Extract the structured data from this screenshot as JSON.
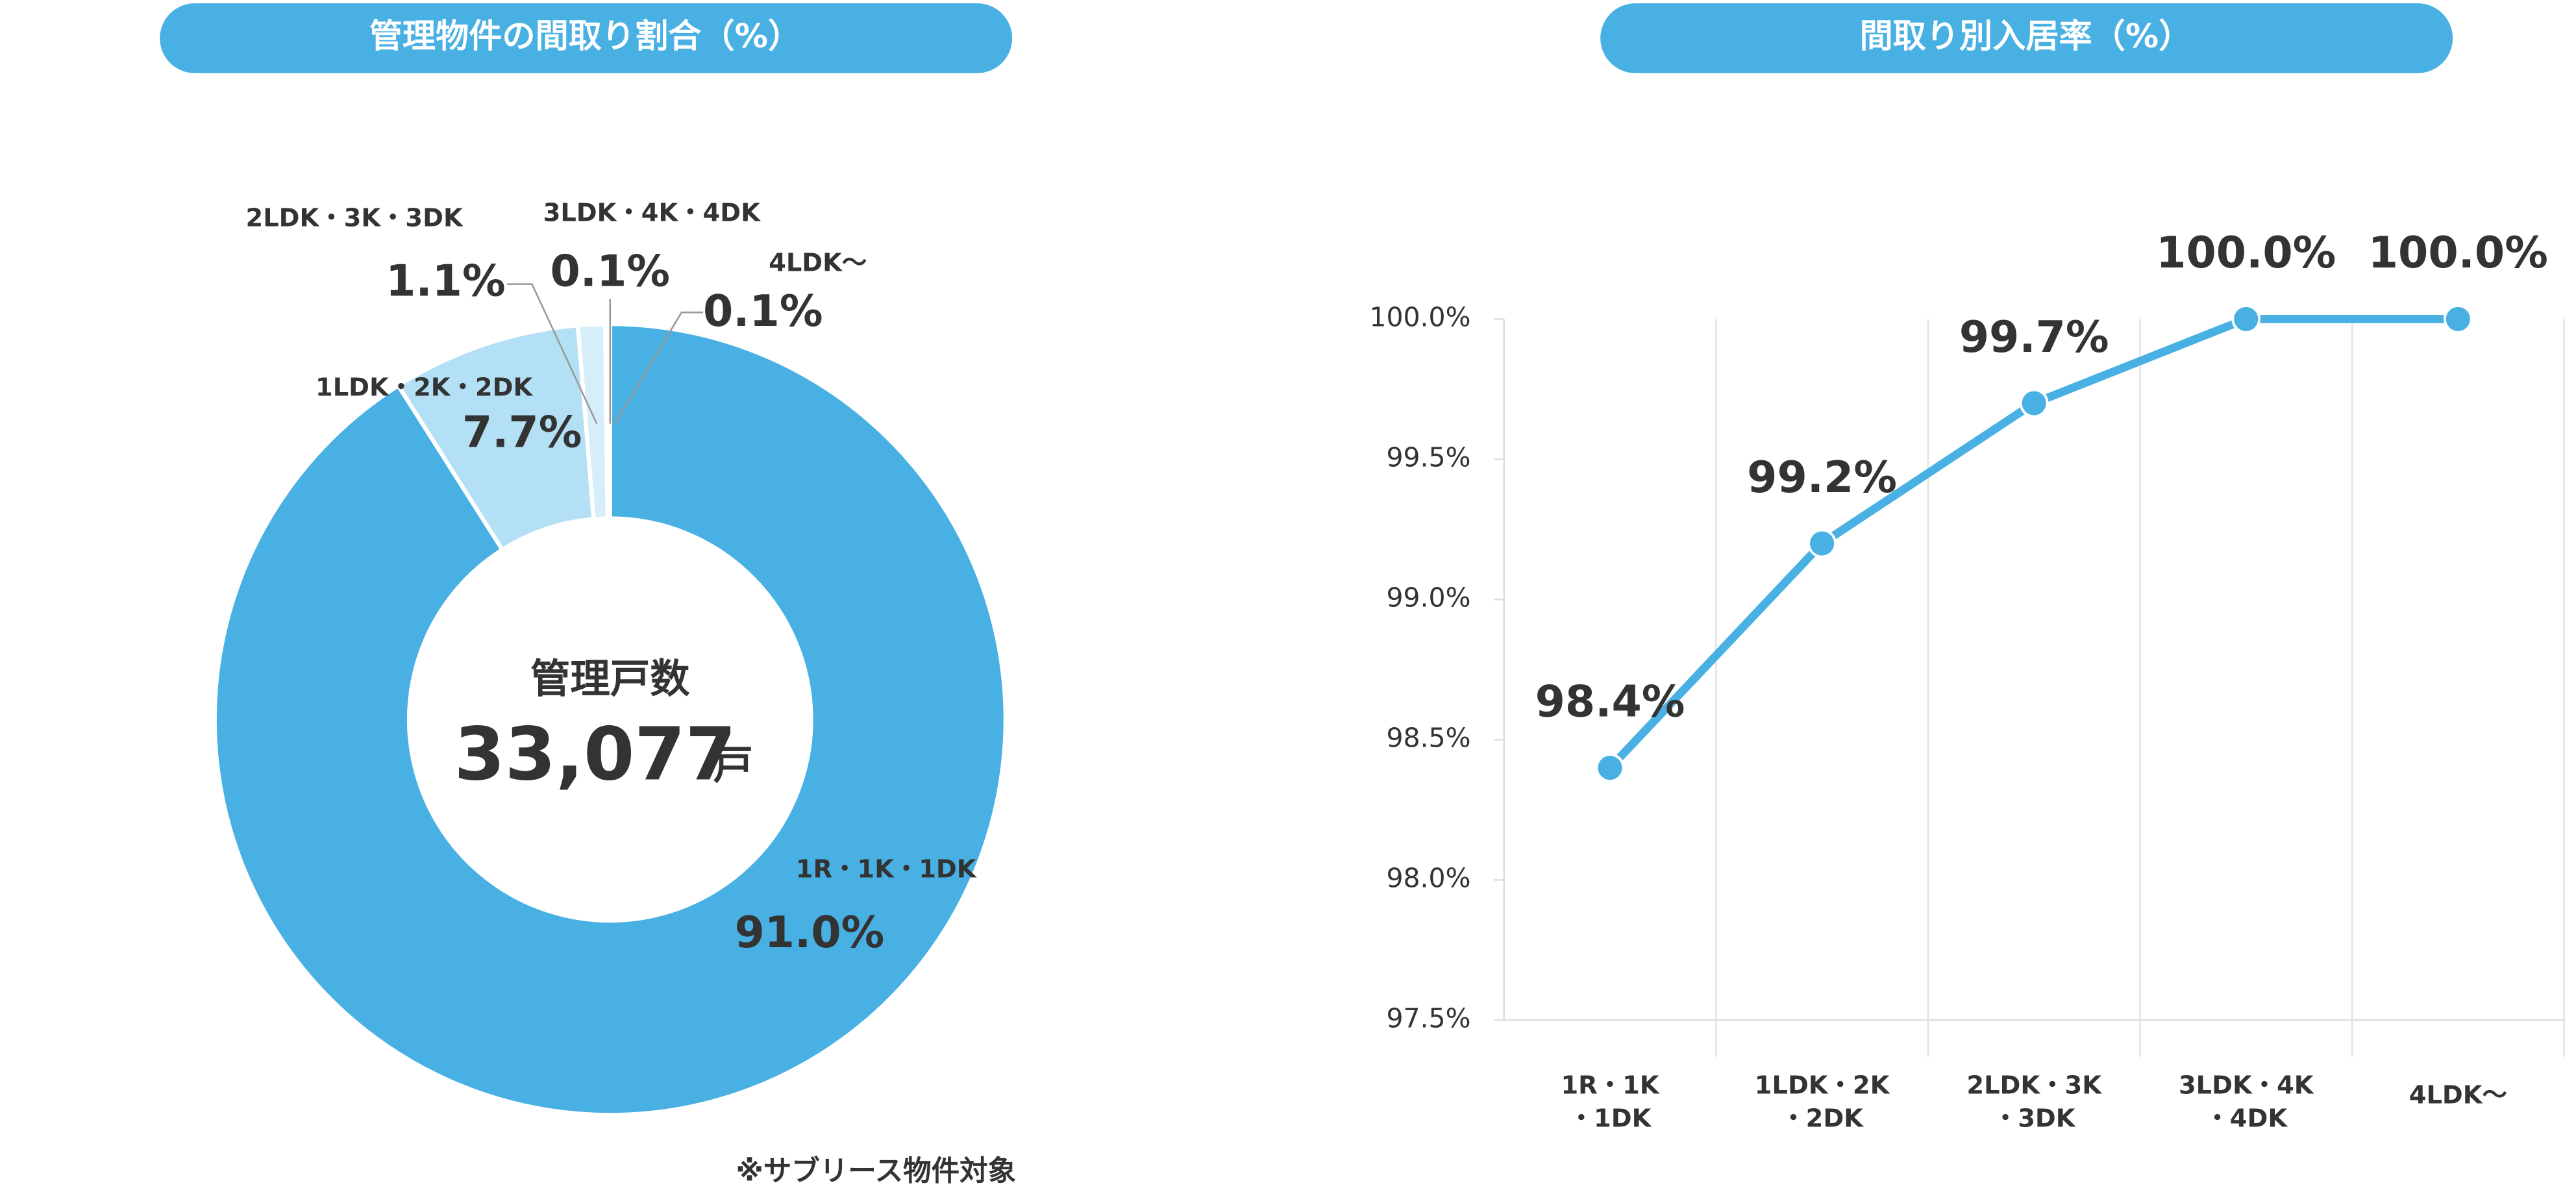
{
  "chart_data": [
    {
      "type": "pie",
      "title": "管理物件の間取り割合（%）",
      "categories": [
        "1R・1K・1DK",
        "1LDK・2K・2DK",
        "2LDK・3K・3DK",
        "3LDK・4K・4DK",
        "4LDK〜"
      ],
      "values": [
        91.0,
        7.7,
        1.1,
        0.1,
        0.1
      ],
      "value_labels": [
        "91.0%",
        "7.7%",
        "1.1%",
        "0.1%",
        "0.1%"
      ],
      "colors": [
        "#49b0e4",
        "#b3e0f5",
        "#d6eef9",
        "#e8f5fc",
        "#f2f9fd"
      ],
      "center_title": "管理戸数",
      "center_value": "33,077",
      "center_unit": "戸",
      "note": "※サブリース物件対象"
    },
    {
      "type": "line",
      "title": "間取り別入居率（%）",
      "categories": [
        [
          "1R・1K",
          "・1DK"
        ],
        [
          "1LDK・2K",
          "・2DK"
        ],
        [
          "2LDK・3K",
          "・3DK"
        ],
        [
          "3LDK・4K",
          "・4DK"
        ],
        [
          "4LDK〜"
        ]
      ],
      "values": [
        98.4,
        99.2,
        99.7,
        100.0,
        100.0
      ],
      "value_labels": [
        "98.4%",
        "99.2%",
        "99.7%",
        "100.0%",
        "100.0%"
      ],
      "color": "#49b0e4",
      "ylim": [
        97.5,
        100.0
      ],
      "yticks": [
        {
          "value": 97.5,
          "label": "97.5%"
        },
        {
          "value": 98.0,
          "label": "98.0%"
        },
        {
          "value": 98.5,
          "label": "98.5%"
        },
        {
          "value": 99.0,
          "label": "99.0%"
        },
        {
          "value": 99.5,
          "label": "99.5%"
        },
        {
          "value": 100.0,
          "label": "100.0%"
        }
      ]
    }
  ]
}
